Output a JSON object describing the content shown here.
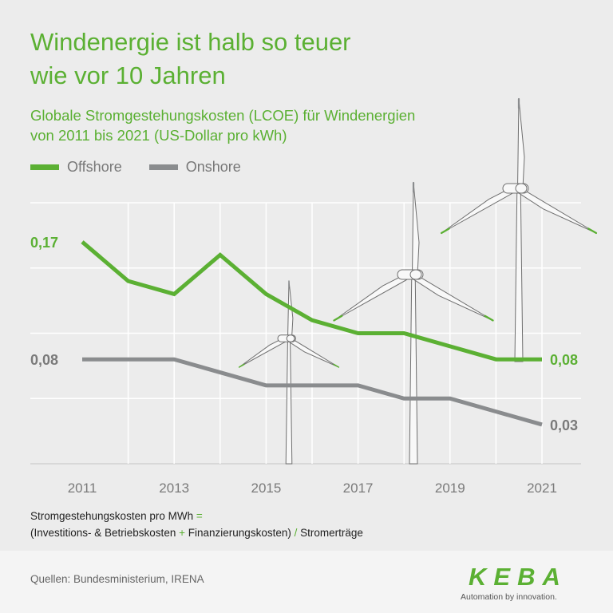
{
  "title": [
    "Windenergie ist halb so teuer",
    "wie vor 10 Jahren"
  ],
  "subtitle": [
    "Globale Stromgestehungskosten (LCOE) für Windenergien",
    "von 2011 bis 2021 (US-Dollar pro kWh)"
  ],
  "formula": {
    "line1_text": "Stromgestehungskosten pro MWh",
    "line1_op": "=",
    "line2_part1": "(Investitions- & Betriebskosten",
    "line2_op1": "+",
    "line2_part2": "Finanzierungskosten)",
    "line2_op2": "/",
    "line2_part3": "Stromerträge"
  },
  "footer": {
    "sources": "Quellen: Bundesministerium, IRENA",
    "logo_text": "KEBA",
    "tagline": "Automation by innovation."
  },
  "colors": {
    "accent": "#5bb033",
    "offshore": "#5bb033",
    "onshore": "#8a8c8e",
    "grid": "#ffffff",
    "label_gray": "#7a7a7a"
  },
  "chart_data": {
    "type": "line",
    "title": "Globale Stromgestehungskosten (LCOE) für Windenergien von 2011 bis 2021 (US-Dollar pro kWh)",
    "x": [
      2011,
      2012,
      2013,
      2014,
      2015,
      2016,
      2017,
      2018,
      2019,
      2020,
      2021
    ],
    "x_ticks": [
      "2011",
      "2013",
      "2015",
      "2017",
      "2019",
      "2021"
    ],
    "series": [
      {
        "name": "Offshore",
        "color": "#5bb033",
        "values": [
          0.17,
          0.14,
          0.13,
          0.16,
          0.13,
          0.11,
          0.1,
          0.1,
          0.09,
          0.08,
          0.08
        ],
        "start_label": "0,17",
        "end_label": "0,08"
      },
      {
        "name": "Onshore",
        "color": "#8a8c8e",
        "values": [
          0.08,
          0.08,
          0.08,
          0.07,
          0.06,
          0.06,
          0.06,
          0.05,
          0.05,
          0.04,
          0.03
        ],
        "start_label": "0,08",
        "end_label": "0,03"
      }
    ],
    "ylim": [
      0,
      0.2
    ],
    "grid": true,
    "legend": "top-left"
  }
}
